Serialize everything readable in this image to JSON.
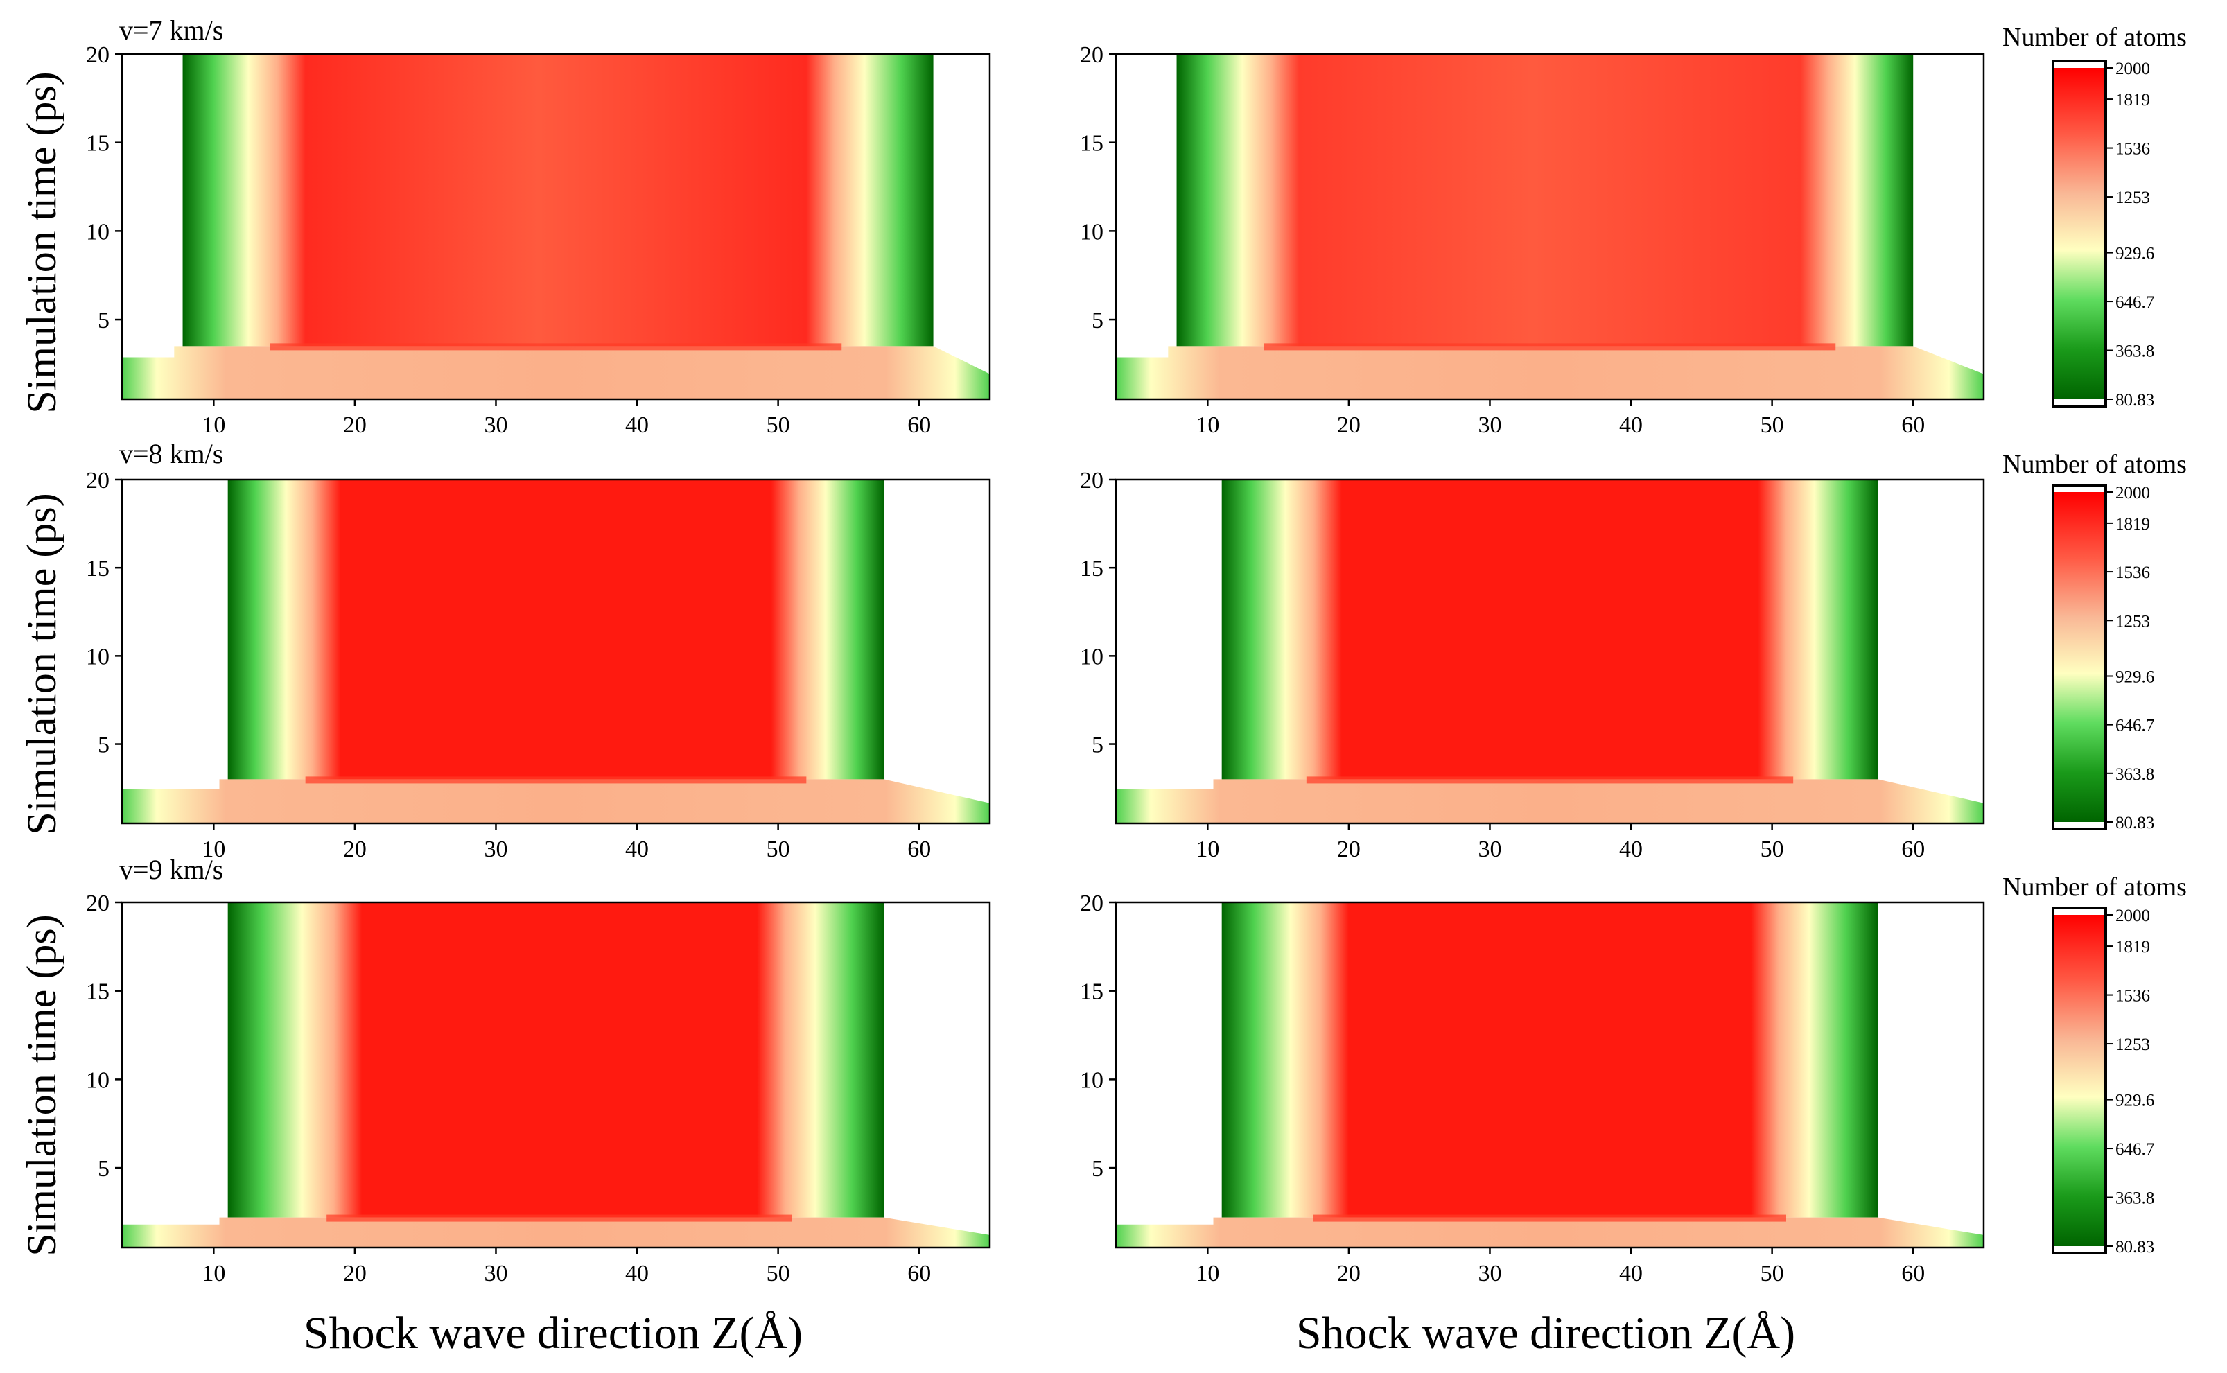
{
  "chart_data": [
    {
      "type": "heatmap",
      "panel": "row1-left",
      "speed_label": "v=7 km/s",
      "xlabel": "",
      "ylabel": "Simulation time (ps)",
      "xlim": [
        3.5,
        65
      ],
      "ylim": [
        0.5,
        20
      ],
      "xticks": [
        10,
        20,
        30,
        40,
        50,
        60
      ],
      "yticks": [
        5,
        10,
        15,
        20
      ],
      "material_edges_z": {
        "left": 7.8,
        "right": 61
      },
      "shocked_from_t": 3.5,
      "interface_band_z": {
        "left": [
          8,
          14
        ],
        "right": [
          54.5,
          60
        ]
      },
      "core_value": 1860,
      "center_value": 1700
    },
    {
      "type": "heatmap",
      "panel": "row1-right",
      "speed_label": "",
      "xlabel": "",
      "ylabel": "",
      "xlim": [
        3.5,
        65
      ],
      "ylim": [
        0.5,
        20
      ],
      "xticks": [
        10,
        20,
        30,
        40,
        50,
        60
      ],
      "yticks": [
        5,
        10,
        15,
        20
      ],
      "material_edges_z": {
        "left": 7.8,
        "right": 60
      },
      "shocked_from_t": 3.5,
      "interface_band_z": {
        "left": [
          8,
          14
        ],
        "right": [
          54.5,
          59.5
        ]
      },
      "core_value": 1800,
      "center_value": 1780
    },
    {
      "type": "heatmap",
      "panel": "row2-left",
      "speed_label": "v=8 km/s",
      "xlabel": "",
      "ylabel": "Simulation time (ps)",
      "xlim": [
        3.5,
        65
      ],
      "ylim": [
        0.5,
        20
      ],
      "xticks": [
        10,
        20,
        30,
        40,
        50,
        60
      ],
      "yticks": [
        5,
        10,
        15,
        20
      ],
      "material_edges_z": {
        "left": 11,
        "right": 57.5
      },
      "shocked_from_t": 3.0,
      "interface_band_z": {
        "left": [
          11,
          16.5
        ],
        "right": [
          52,
          57.5
        ]
      },
      "core_value": 1950,
      "center_value": 1950
    },
    {
      "type": "heatmap",
      "panel": "row2-right",
      "speed_label": "",
      "xlabel": "",
      "ylabel": "",
      "xlim": [
        3.5,
        65
      ],
      "ylim": [
        0.5,
        20
      ],
      "xticks": [
        10,
        20,
        30,
        40,
        50,
        60
      ],
      "yticks": [
        5,
        10,
        15,
        20
      ],
      "material_edges_z": {
        "left": 11,
        "right": 57.5
      },
      "shocked_from_t": 3.0,
      "interface_band_z": {
        "left": [
          11,
          17
        ],
        "right": [
          51.5,
          57.5
        ]
      },
      "core_value": 1920,
      "center_value": 1920
    },
    {
      "type": "heatmap",
      "panel": "row3-left",
      "speed_label": "v=9 km/s",
      "xlabel": "Shock wave direction Z(Å)",
      "ylabel": "Simulation time (ps)",
      "xlim": [
        3.5,
        65
      ],
      "ylim": [
        0.5,
        20
      ],
      "xticks": [
        10,
        20,
        30,
        40,
        50,
        60
      ],
      "yticks": [
        5,
        10,
        15,
        20
      ],
      "material_edges_z": {
        "left": 11,
        "right": 57.5
      },
      "shocked_from_t": 2.2,
      "interface_band_z": {
        "left": [
          11,
          18
        ],
        "right": [
          51,
          57.5
        ]
      },
      "core_value": 1980,
      "center_value": 1980
    },
    {
      "type": "heatmap",
      "panel": "row3-right",
      "speed_label": "",
      "xlabel": "Shock wave direction Z(Å)",
      "ylabel": "",
      "xlim": [
        3.5,
        65
      ],
      "ylim": [
        0.5,
        20
      ],
      "xticks": [
        10,
        20,
        30,
        40,
        50,
        60
      ],
      "yticks": [
        5,
        10,
        15,
        20
      ],
      "material_edges_z": {
        "left": 11,
        "right": 57.5
      },
      "shocked_from_t": 2.2,
      "interface_band_z": {
        "left": [
          11,
          17.5
        ],
        "right": [
          51,
          57.5
        ]
      },
      "core_value": 1980,
      "center_value": 1980
    }
  ],
  "colorbar": {
    "title": "Number of atoms",
    "ticks": [
      "2000",
      "1819",
      "1536",
      "1253",
      "929.6",
      "646.7",
      "363.8",
      "80.83"
    ],
    "tick_values": [
      2000,
      1819,
      1536,
      1253,
      929.6,
      646.7,
      363.8,
      80.83
    ],
    "range": [
      80.83,
      2000
    ],
    "color_low": "#006400",
    "color_mid": "#ffffc0",
    "color_high": "#ff0000"
  },
  "colors": {
    "low": "#006400",
    "green": "#4fd14f",
    "pale": "#ffffc0",
    "peach": "#f9b48d",
    "red": "#ff2a1f",
    "background": "#ffffff"
  }
}
